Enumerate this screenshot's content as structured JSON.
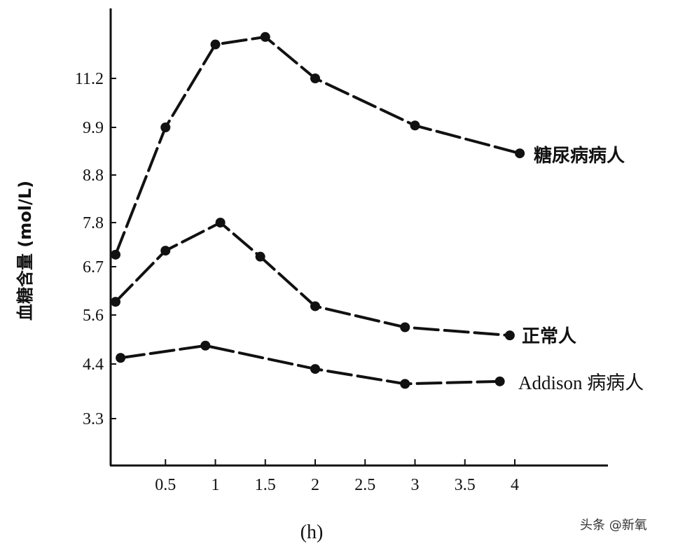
{
  "chart_data": {
    "type": "line",
    "title": "",
    "xlabel": "(h)",
    "ylabel": "血糖含量 (mol/L)",
    "x_ticks": [
      "0.5",
      "1",
      "1.5",
      "2",
      "2.5",
      "3",
      "3.5",
      "4"
    ],
    "y_ticks": [
      "3.3",
      "4.4",
      "5.6",
      "6.7",
      "7.8",
      "8.8",
      "9.9",
      "11.2"
    ],
    "xlim": [
      0,
      4.3
    ],
    "series": [
      {
        "name": "糖尿病病人",
        "x": [
          0,
          0.5,
          1,
          1.5,
          2,
          3,
          4.05
        ],
        "y": [
          7.0,
          9.9,
          12.1,
          12.3,
          11.2,
          9.95,
          9.3
        ]
      },
      {
        "name": "正常人",
        "x": [
          0,
          0.5,
          1.05,
          1.45,
          2,
          2.9,
          3.95
        ],
        "y": [
          5.9,
          7.1,
          7.8,
          6.95,
          5.8,
          5.3,
          5.1
        ]
      },
      {
        "name": "Addison 病病人",
        "x": [
          0.05,
          0.9,
          2,
          2.9,
          3.85
        ],
        "y": [
          4.55,
          4.85,
          4.3,
          4.0,
          4.05
        ]
      }
    ],
    "grid": false,
    "legend": "inline labels at line ends"
  },
  "watermark": "头条 @新氧"
}
